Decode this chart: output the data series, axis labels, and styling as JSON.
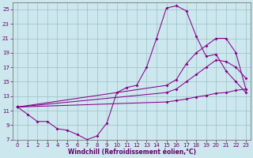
{
  "xlabel": "Windchill (Refroidissement éolien,°C)",
  "bg_color": "#cce8ee",
  "line_color": "#880088",
  "ylim": [
    7,
    26
  ],
  "xlim": [
    -0.5,
    23.5
  ],
  "yticks": [
    7,
    9,
    11,
    13,
    15,
    17,
    19,
    21,
    23,
    25
  ],
  "xticks": [
    0,
    1,
    2,
    3,
    4,
    5,
    6,
    7,
    8,
    9,
    10,
    11,
    12,
    13,
    14,
    15,
    16,
    17,
    18,
    19,
    20,
    21,
    22,
    23
  ],
  "lines": [
    {
      "x": [
        0,
        1,
        2,
        3,
        4,
        5,
        6,
        7,
        8,
        9,
        10,
        11,
        12,
        13,
        14,
        15,
        16,
        17,
        18,
        19,
        20,
        21,
        22,
        23
      ],
      "y": [
        11.5,
        10.5,
        9.5,
        9.5,
        8.5,
        8.3,
        7.7,
        7.0,
        7.5,
        9.3,
        13.5,
        14.2,
        14.5,
        17.0,
        21.0,
        25.2,
        25.5,
        24.8,
        21.3,
        18.5,
        18.8,
        16.5,
        15.0,
        13.5
      ]
    },
    {
      "x": [
        0,
        15,
        16,
        17,
        18,
        19,
        20,
        21,
        22,
        23
      ],
      "y": [
        11.5,
        14.5,
        15.3,
        17.5,
        19.0,
        20.0,
        21.0,
        21.0,
        19.0,
        14.0
      ]
    },
    {
      "x": [
        0,
        15,
        16,
        17,
        18,
        19,
        20,
        21,
        22,
        23
      ],
      "y": [
        11.5,
        13.5,
        14.0,
        15.0,
        16.0,
        17.0,
        18.0,
        17.8,
        17.0,
        15.5
      ]
    },
    {
      "x": [
        0,
        15,
        16,
        17,
        18,
        19,
        20,
        21,
        22,
        23
      ],
      "y": [
        11.5,
        12.2,
        12.4,
        12.6,
        12.9,
        13.1,
        13.4,
        13.5,
        13.8,
        14.0
      ]
    }
  ]
}
